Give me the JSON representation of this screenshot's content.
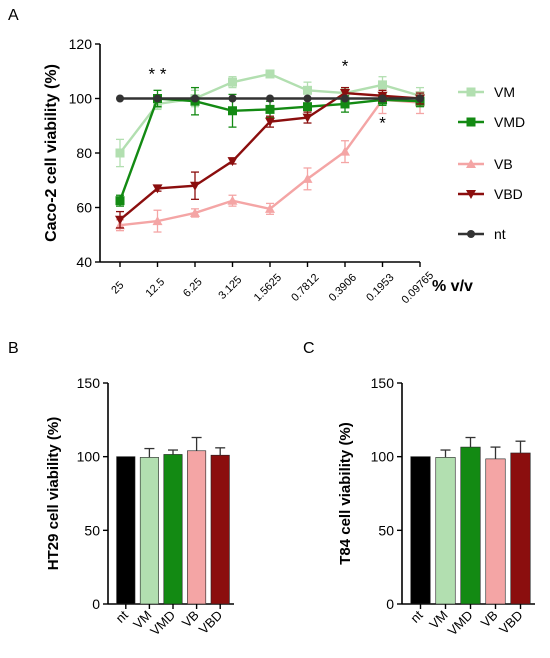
{
  "colors": {
    "VM": "#b2dfb0",
    "VMD": "#138a13",
    "VB": "#f4a5a5",
    "VBD": "#8b0e0e",
    "nt": "#333333",
    "nt_bar": "#000000"
  },
  "panels": {
    "A": "A",
    "B": "B",
    "C": "C"
  },
  "chart_data": [
    {
      "panel": "A",
      "type": "line",
      "ylabel": "Caco-2 cell viability (%)",
      "xlabel": "% v/v",
      "ylim": [
        40,
        120
      ],
      "yticks": [
        40,
        60,
        80,
        100,
        120
      ],
      "categories": [
        "25",
        "12.5",
        "6.25",
        "3.125",
        "1.5625",
        "0.7812",
        "0.3906",
        "0.1953",
        "0.09765"
      ],
      "legend_position": "right",
      "series": [
        {
          "name": "VM",
          "key": "VM",
          "marker": "square",
          "values": [
            80,
            98,
            100,
            106,
            109,
            103,
            102,
            105,
            101
          ],
          "errors": [
            5,
            2,
            3,
            2,
            1,
            3,
            2,
            3,
            3
          ]
        },
        {
          "name": "VMD",
          "key": "VMD",
          "marker": "square",
          "values": [
            62.5,
            100,
            99,
            95.5,
            96,
            97,
            98,
            99.5,
            99
          ],
          "errors": [
            2,
            3,
            5,
            6,
            3,
            3,
            3,
            2,
            2
          ]
        },
        {
          "name": "VB",
          "key": "VB",
          "marker": "triangle",
          "values": [
            53.5,
            55,
            58,
            62.5,
            59.5,
            70.5,
            80.5,
            99.5,
            98.5
          ],
          "errors": [
            2,
            4,
            1.5,
            2,
            2,
            4,
            4,
            5,
            4
          ]
        },
        {
          "name": "VBD",
          "key": "VBD",
          "marker": "triangle-down",
          "values": [
            55.5,
            67,
            68,
            77,
            91.5,
            93,
            102,
            101,
            100
          ],
          "errors": [
            3,
            1,
            5,
            1,
            2,
            2,
            2,
            2,
            2
          ]
        },
        {
          "name": "nt",
          "key": "nt",
          "marker": "circle",
          "values": [
            100,
            100,
            100,
            100,
            100,
            100,
            100,
            100,
            100
          ],
          "errors": [
            0,
            0,
            0,
            0,
            0,
            0,
            0,
            0,
            0
          ]
        }
      ],
      "annotations": [
        {
          "text": "* *",
          "x_category": "12.5",
          "y": 107
        },
        {
          "text": "*",
          "x_category": "0.3906",
          "y": 110
        },
        {
          "text": "*",
          "x_category": "0.1953",
          "y": 89
        }
      ]
    },
    {
      "panel": "B",
      "type": "bar",
      "ylabel": "HT29 cell viability (%)",
      "ylim": [
        0,
        150
      ],
      "yticks": [
        0,
        50,
        100,
        150
      ],
      "categories": [
        "nt",
        "VM",
        "VMD",
        "VB",
        "VBD"
      ],
      "values": [
        100,
        99.5,
        101.5,
        104,
        101
      ],
      "errors": [
        0,
        6,
        3,
        9,
        5
      ]
    },
    {
      "panel": "C",
      "type": "bar",
      "ylabel": "T84 cell viability (%)",
      "ylim": [
        0,
        150
      ],
      "yticks": [
        0,
        50,
        100,
        150
      ],
      "categories": [
        "nt",
        "VM",
        "VMD",
        "VB",
        "VBD"
      ],
      "values": [
        100,
        99.5,
        106.5,
        98.5,
        102.5
      ],
      "errors": [
        0,
        5,
        6.5,
        8,
        8
      ]
    }
  ]
}
